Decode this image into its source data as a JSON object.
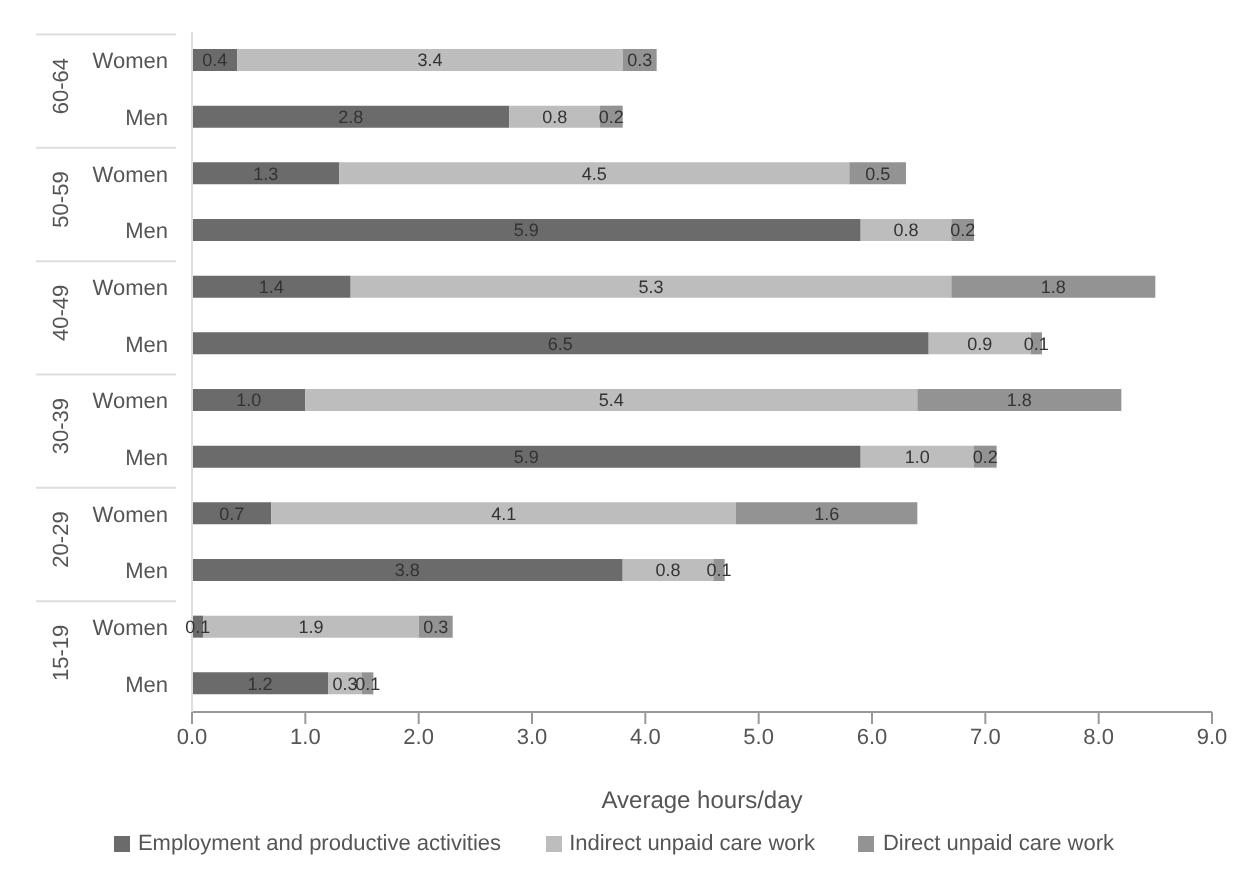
{
  "chart_data": {
    "type": "bar",
    "orientation": "horizontal",
    "stacked": true,
    "xlabel": "Average hours/day",
    "categories": [
      "Women",
      "Men",
      "Women",
      "Men",
      "Women",
      "Men",
      "Women",
      "Men",
      "Women",
      "Men",
      "Women",
      "Men"
    ],
    "annotations": [
      "60-64",
      "50-59",
      "40-49",
      "30-39",
      "20-29",
      "15-19"
    ],
    "series": [
      {
        "name": "Employment and productive activities",
        "color": "#6b6b6b",
        "values": [
          0.4,
          2.8,
          1.3,
          5.9,
          1.4,
          6.5,
          1.0,
          5.9,
          0.7,
          3.8,
          0.1,
          1.2
        ],
        "value_labels": [
          "0.4",
          "2.8",
          "1.3",
          "5.9",
          "1.4",
          "6.5",
          "1.0",
          "5.9",
          "0.7",
          "3.8",
          "0.1",
          "1.2"
        ]
      },
      {
        "name": "Indirect unpaid care work",
        "color": "#bdbdbd",
        "values": [
          3.4,
          0.8,
          4.5,
          0.8,
          5.3,
          0.9,
          5.4,
          1.0,
          4.1,
          0.8,
          1.9,
          0.3
        ],
        "value_labels": [
          "3.4",
          "0.8",
          "4.5",
          "0.8",
          "5.3",
          "0.9",
          "5.4",
          "1.0",
          "4.1",
          "0.8",
          "1.9",
          "0.3"
        ]
      },
      {
        "name": "Direct unpaid care work",
        "color": "#939393",
        "values": [
          0.3,
          0.2,
          0.5,
          0.2,
          1.8,
          0.1,
          1.8,
          0.2,
          1.6,
          0.1,
          0.3,
          0.1
        ],
        "value_labels": [
          "0.3",
          "0.2",
          "0.5",
          "0.2",
          "1.8",
          "0.1",
          "1.8",
          "0.2",
          "1.6",
          "0.1",
          "0.3",
          "0.1"
        ]
      }
    ],
    "xlim": [
      0,
      9
    ],
    "xticks": [
      {
        "value": 0,
        "label": "0.0"
      },
      {
        "value": 1,
        "label": "1.0"
      },
      {
        "value": 2,
        "label": "2.0"
      },
      {
        "value": 3,
        "label": "3.0"
      },
      {
        "value": 4,
        "label": "4.0"
      },
      {
        "value": 5,
        "label": "5.0"
      },
      {
        "value": 6,
        "label": "6.0"
      },
      {
        "value": 7,
        "label": "7.0"
      },
      {
        "value": 8,
        "label": "8.0"
      },
      {
        "value": 9,
        "label": "9.0"
      }
    ],
    "legend": "bottom",
    "grid": false
  }
}
